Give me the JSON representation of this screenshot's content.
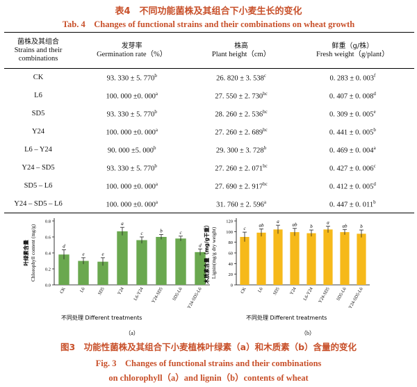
{
  "table": {
    "title_cn": "表4　不同功能菌株及其组合下小麦生长的变化",
    "title_en": "Tab. 4　Changes of functional strains and their combinations on wheat growth",
    "headers": [
      {
        "cn": "菌株及其组合",
        "en": "Strains and their combinations"
      },
      {
        "cn": "发芽率",
        "en": "Germination rate（%）"
      },
      {
        "cn": "株高",
        "en": "Plant height（cm）"
      },
      {
        "cn": "鲜重（g/株）",
        "en": "Fresh weight（g/plant）"
      }
    ],
    "rows": [
      {
        "name": "CK",
        "germ": "93. 330 ± 5. 770",
        "germ_sig": "b",
        "height": "26. 820 ± 3. 538",
        "height_sig": "c",
        "weight": "0. 283 ± 0. 003",
        "weight_sig": "f"
      },
      {
        "name": "L6",
        "germ": "100. 000 ±0. 000",
        "germ_sig": "a",
        "height": "27. 550 ± 2. 730",
        "height_sig": "bc",
        "weight": "0. 407 ± 0. 008",
        "weight_sig": "d"
      },
      {
        "name": "SD5",
        "germ": "93. 330 ± 5. 770",
        "germ_sig": "b",
        "height": "28. 260 ± 2. 536",
        "height_sig": "bc",
        "weight": "0. 309 ± 0. 005",
        "weight_sig": "e"
      },
      {
        "name": "Y24",
        "germ": "100. 000 ±0. 000",
        "germ_sig": "a",
        "height": "27. 260 ± 2. 689",
        "height_sig": "bc",
        "weight": "0. 441 ± 0. 005",
        "weight_sig": "b"
      },
      {
        "name": "L6 – Y24",
        "germ": "90. 000 ±5. 000",
        "germ_sig": "b",
        "height": "29. 300 ± 3. 728",
        "height_sig": "b",
        "weight": "0. 469 ± 0. 004",
        "weight_sig": "a"
      },
      {
        "name": "Y24 – SD5",
        "germ": "93. 330 ± 5. 770",
        "germ_sig": "b",
        "height": "27. 260 ± 2. 071",
        "height_sig": "bc",
        "weight": "0. 427 ± 0. 006",
        "weight_sig": "c"
      },
      {
        "name": "SD5 – L6",
        "germ": "100. 000 ±0. 000",
        "germ_sig": "a",
        "height": "27. 690 ± 2. 917",
        "height_sig": "bc",
        "weight": "0. 412 ± 0. 005",
        "weight_sig": "d"
      },
      {
        "name": "Y24 – SD5 – L6",
        "germ": "100. 000 ±0. 000",
        "germ_sig": "a",
        "height": "31. 760 ± 2. 596",
        "height_sig": "a",
        "weight": "0. 447 ± 0. 011",
        "weight_sig": "b"
      }
    ]
  },
  "figure": {
    "title_cn": "图3　功能性菌株及其组合下小麦植株叶绿素（a）和木质素（b）含量的变化",
    "title_en_line1": "Fig. 3　Changes of functional strains and their combinations",
    "title_en_line2": "on chlorophyll（a）and lignin（b）contents of wheat"
  },
  "chart_data": [
    {
      "type": "bar",
      "panel_label": "（a）",
      "categories": [
        "CK",
        "L6",
        "SD5",
        "Y24",
        "L6-Y24",
        "Y24-SD5",
        "SD5-L6",
        "Y24-SD5-L6"
      ],
      "values": [
        0.38,
        0.3,
        0.29,
        0.67,
        0.56,
        0.6,
        0.58,
        0.41
      ],
      "errors": [
        0.06,
        0.04,
        0.05,
        0.05,
        0.04,
        0.03,
        0.03,
        0.04
      ],
      "sig_letters": [
        "d",
        "e",
        "e",
        "a",
        "c",
        "b",
        "c",
        "d"
      ],
      "ylabel_cn": "叶绿素含量",
      "ylabel_en": "Chlorophyll content (mg/g)",
      "xlabel": "不同处理 Different treatments",
      "ylim": [
        0,
        0.8
      ],
      "yticks": [
        "0.0",
        "0.2",
        "0.4",
        "0.6",
        "0.8"
      ],
      "color": "#6aa84f"
    },
    {
      "type": "bar",
      "panel_label": "（b）",
      "categories": [
        "CK",
        "L6",
        "SD5",
        "Y24",
        "L6-Y24",
        "Y24-SD5",
        "SD5-L6",
        "Y24-SD5-L6"
      ],
      "values": [
        90,
        98,
        104,
        99,
        97,
        104,
        99,
        96
      ],
      "errors": [
        9,
        7,
        8,
        7,
        6,
        6,
        5,
        7
      ],
      "sig_letters": [
        "c",
        "ab",
        "a",
        "ab",
        "b",
        "a",
        "ab",
        "b"
      ],
      "ylabel_cn": "木质素含量（mg/g干重）",
      "ylabel_en": "Lignin(mg/g dry weight)",
      "xlabel": "不同处理 Different treatments",
      "ylim": [
        0,
        120
      ],
      "yticks": [
        "0",
        "20",
        "40",
        "60",
        "80",
        "100",
        "120"
      ],
      "color": "#f6b91a"
    }
  ]
}
